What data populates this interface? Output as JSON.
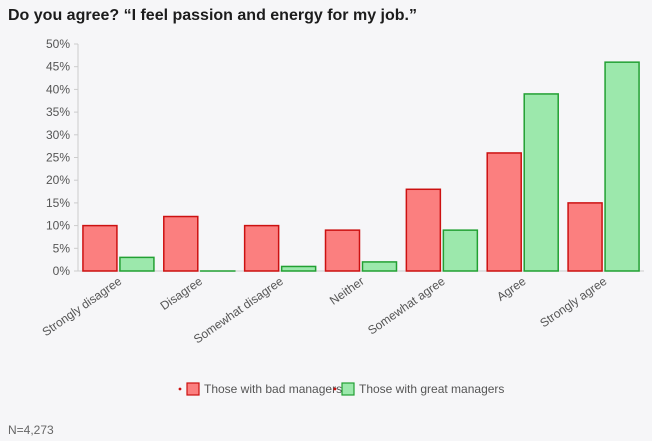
{
  "title": "Do you agree? “I feel passion and energy for my job.”",
  "footnote": "N=4,273",
  "colors": {
    "bad_fill": "#fb7f7f",
    "bad_stroke": "#cc1111",
    "great_fill": "#9ce8ac",
    "great_stroke": "#22a033",
    "axis": "#cccccc",
    "text": "#555555"
  },
  "chart_data": {
    "type": "bar",
    "title": "Do you agree? “I feel passion and energy for my job.”",
    "xlabel": "",
    "ylabel": "",
    "ylim": [
      0,
      50
    ],
    "yticks": [
      "0%",
      "5%",
      "10%",
      "15%",
      "20%",
      "25%",
      "30%",
      "35%",
      "40%",
      "45%",
      "50%"
    ],
    "categories": [
      "Strongly disagree",
      "Disagree",
      "Somewhat disagree",
      "Neither",
      "Somewhat agree",
      "Agree",
      "Strongly agree"
    ],
    "series": [
      {
        "name": "Those with bad managers",
        "values": [
          10,
          12,
          10,
          9,
          18,
          26,
          15
        ]
      },
      {
        "name": "Those with great managers",
        "values": [
          3,
          0,
          1,
          2,
          9,
          39,
          46
        ]
      }
    ],
    "grid": false,
    "legend": "bottom-center"
  }
}
